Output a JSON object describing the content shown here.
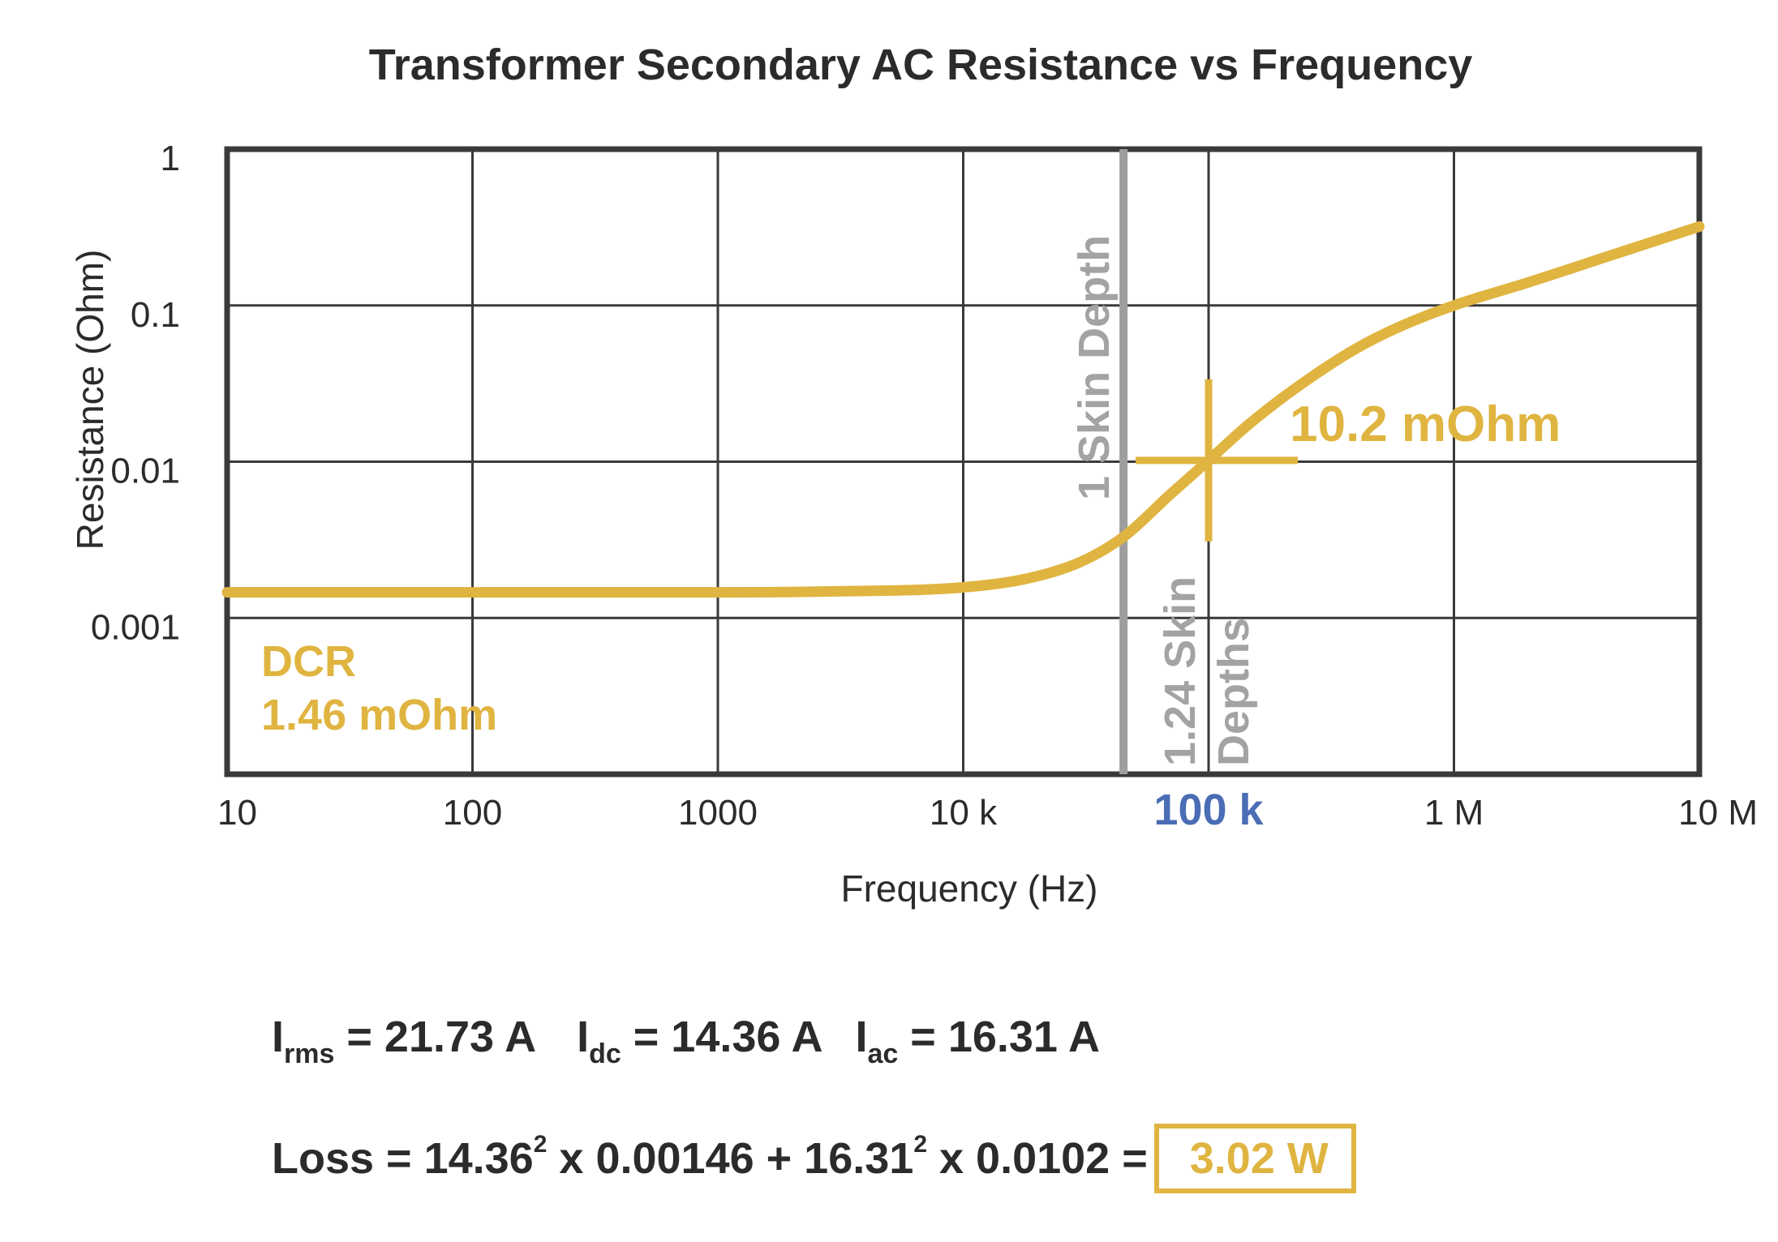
{
  "chart_data": {
    "type": "line",
    "title": "Transformer Secondary AC Resistance vs Frequency",
    "xlabel": "Frequency (Hz)",
    "ylabel": "Resistance (Ohm)",
    "x_scale": "log",
    "y_scale": "log",
    "xlim": [
      10,
      10000000
    ],
    "ylim": [
      0.0001,
      1
    ],
    "x_ticks": [
      {
        "value": 10,
        "label": "10"
      },
      {
        "value": 100,
        "label": "100"
      },
      {
        "value": 1000,
        "label": "1000"
      },
      {
        "value": 10000,
        "label": "10 k"
      },
      {
        "value": 100000,
        "label": "100 k",
        "highlight": true
      },
      {
        "value": 1000000,
        "label": "1 M"
      },
      {
        "value": 10000000,
        "label": "10 M"
      }
    ],
    "y_ticks": [
      {
        "value": 1,
        "label": "1"
      },
      {
        "value": 0.1,
        "label": "0.1"
      },
      {
        "value": 0.01,
        "label": "0.01"
      },
      {
        "value": 0.001,
        "label": "0.001"
      }
    ],
    "grid": true,
    "series": [
      {
        "color": "#e0b440",
        "x": [
          10,
          100,
          1000,
          3000,
          10000,
          18000,
          30000,
          45000,
          70000,
          100000,
          150000,
          250000,
          400000,
          600000,
          1000000,
          2000000,
          4000000,
          10000000
        ],
        "y": [
          0.00146,
          0.00146,
          0.00146,
          0.00148,
          0.00157,
          0.00178,
          0.00228,
          0.0033,
          0.0062,
          0.0102,
          0.018,
          0.033,
          0.053,
          0.073,
          0.1,
          0.14,
          0.2,
          0.32
        ]
      }
    ],
    "vlines": [
      {
        "x": 45000,
        "label": "1 Skin Depth",
        "color": "#9e9e9e"
      }
    ],
    "annotations": {
      "skin_124": [
        "1.24 Skin",
        "Depths"
      ],
      "marker": {
        "x": 100000,
        "y": 0.0102,
        "label": "10.2 mOhm"
      },
      "dcr": [
        "DCR",
        "1.46 mOhm"
      ]
    }
  },
  "equations": {
    "line1": {
      "i_rms": {
        "symbol": "I",
        "sub": "rms",
        "text": " = 21.73 A"
      },
      "i_dc": {
        "symbol": "I",
        "sub": "dc",
        "text": " = 14.36 A"
      },
      "i_ac": {
        "symbol": "I",
        "sub": "ac",
        "text": " = 16.31 A"
      }
    },
    "line2": {
      "part1": "Loss = 14.36",
      "exp1": "2",
      "part2": " x 0.00146 + 16.31",
      "exp2": "2",
      "part3": " x 0.0102 =",
      "result": "3.02 W"
    }
  },
  "colors": {
    "curve": "#e0b440",
    "skin_line": "#9e9e9e",
    "highlight_tick": "#4a6db5",
    "frame": "#3a3a3a"
  }
}
